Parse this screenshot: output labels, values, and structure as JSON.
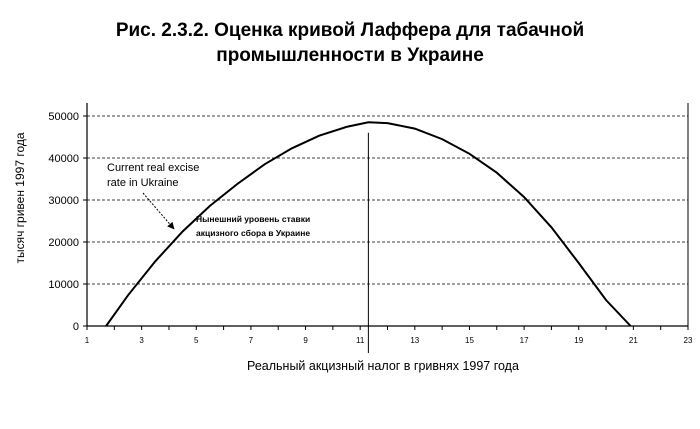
{
  "chart_data": {
    "type": "line",
    "title_line1": "Рис. 2.3.2. Оценка кривой Лаффера для табачной",
    "title_line2": "промышленности в Украине",
    "xlabel": "Реальный акцизный налог в гривнях 1997 года",
    "ylabel": "тысяч гривен 1997 года",
    "xlim": [
      1,
      23
    ],
    "ylim": [
      0,
      50000
    ],
    "x_ticks": [
      "1",
      "3",
      "5",
      "7",
      "9",
      "11",
      "13",
      "15",
      "17",
      "19",
      "21",
      "23"
    ],
    "y_ticks": [
      "0",
      "10000",
      "20000",
      "30000",
      "40000",
      "50000"
    ],
    "grid": "horizontal dashed",
    "series": [
      {
        "name": "",
        "x": [
          1.7,
          2.5,
          3.5,
          4.5,
          5.5,
          6.5,
          7.5,
          8.5,
          9.5,
          10.5,
          11.3,
          12.0,
          13.0,
          14.0,
          15.0,
          16.0,
          17.0,
          18.0,
          19.0,
          20.0,
          20.9
        ],
        "y": [
          0,
          7300,
          15400,
          22500,
          28600,
          33800,
          38500,
          42300,
          45300,
          47400,
          48500,
          48300,
          47000,
          44500,
          41000,
          36500,
          30700,
          23500,
          15000,
          6200,
          0
        ]
      }
    ],
    "reference_line_x": 11.3,
    "annotations": [
      {
        "text_line1": "Current real excise",
        "text_line2": "rate in Ukraine",
        "x": 4.2,
        "y": 23000
      },
      {
        "text_line1": "Нынешний уровень ставки",
        "text_line2": "акцизного сбора в Украине"
      }
    ]
  }
}
